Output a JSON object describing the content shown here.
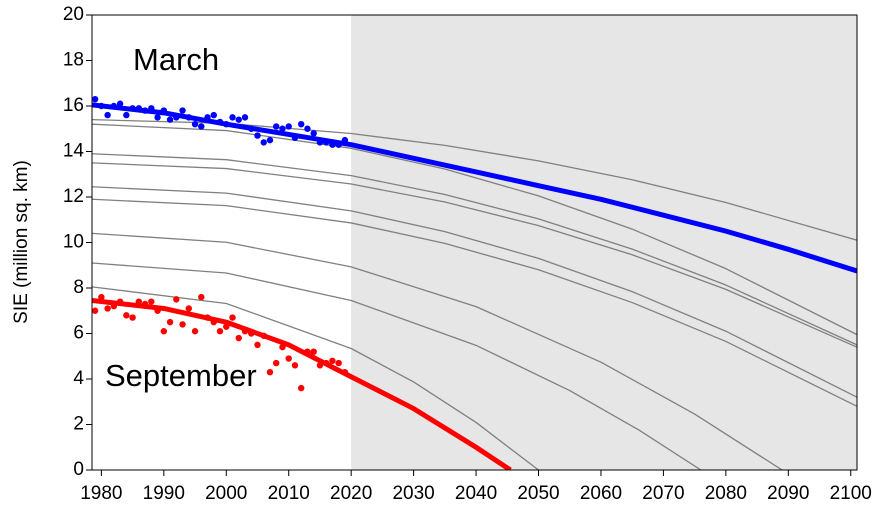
{
  "chart_data": {
    "type": "scatter",
    "y_label": "SIE (million sq. km)",
    "xlim": [
      1978.5,
      2101
    ],
    "ylim": [
      0,
      20
    ],
    "xticks": [
      1980,
      1990,
      2000,
      2010,
      2020,
      2030,
      2040,
      2050,
      2060,
      2070,
      2080,
      2090,
      2100
    ],
    "yticks": [
      0,
      2,
      4,
      6,
      8,
      10,
      12,
      14,
      16,
      18,
      20
    ],
    "shade": {
      "x": [
        2020,
        2101
      ],
      "color": "#e6e6e6"
    },
    "series": [
      {
        "type": "line",
        "color": "#808080",
        "width": 1.3,
        "x": [
          1978.5,
          2000,
          2020,
          2035,
          2050,
          2065,
          2080,
          2101
        ],
        "values": [
          15.4,
          15.24,
          14.79,
          14.27,
          13.59,
          12.76,
          11.76,
          10.1
        ]
      },
      {
        "type": "line",
        "color": "#808080",
        "width": 1.3,
        "x": [
          1978.5,
          2000,
          2020,
          2035,
          2050,
          2065,
          2080,
          2101
        ],
        "values": [
          15.2,
          14.92,
          14.14,
          13.23,
          12.05,
          10.59,
          8.85,
          5.95
        ]
      },
      {
        "type": "line",
        "color": "#808080",
        "width": 1.3,
        "x": [
          1978.5,
          2000,
          2020,
          2035,
          2050,
          2065,
          2080,
          2101
        ],
        "values": [
          13.9,
          13.64,
          12.94,
          12.11,
          11.04,
          9.71,
          8.13,
          5.5
        ]
      },
      {
        "type": "line",
        "color": "#808080",
        "width": 1.3,
        "x": [
          1978.5,
          2000,
          2020,
          2035,
          2050,
          2065,
          2080,
          2101
        ],
        "values": [
          13.5,
          13.25,
          12.57,
          11.78,
          10.74,
          9.46,
          7.94,
          5.4
        ]
      },
      {
        "type": "line",
        "color": "#808080",
        "width": 1.3,
        "x": [
          1978.5,
          2000,
          2020,
          2035,
          2050,
          2065,
          2080,
          2101
        ],
        "values": [
          12.45,
          12.17,
          11.39,
          10.48,
          9.3,
          7.84,
          6.1,
          3.2
        ]
      },
      {
        "type": "line",
        "color": "#808080",
        "width": 1.3,
        "x": [
          1978.5,
          2000,
          2020,
          2035,
          2050,
          2065,
          2080,
          2101
        ],
        "values": [
          11.9,
          11.62,
          10.86,
          9.96,
          8.8,
          7.36,
          5.65,
          2.8
        ]
      },
      {
        "type": "line",
        "color": "#808080",
        "width": 1.3,
        "x": [
          1978.5,
          2000,
          2020,
          2040,
          2060,
          2075,
          2089
        ],
        "values": [
          10.4,
          10.01,
          8.93,
          7.18,
          4.74,
          2.46,
          0
        ]
      },
      {
        "type": "line",
        "color": "#808080",
        "width": 1.3,
        "x": [
          1978.5,
          2000,
          2020,
          2040,
          2055,
          2066,
          2076
        ],
        "values": [
          9.1,
          8.66,
          7.45,
          5.48,
          3.49,
          1.77,
          0
        ]
      },
      {
        "type": "line",
        "color": "#808080",
        "width": 1.3,
        "x": [
          1978.5,
          2000,
          2020,
          2030,
          2040,
          2050
        ],
        "values": [
          8.05,
          7.32,
          5.34,
          3.87,
          2.09,
          0
        ]
      },
      {
        "type": "line",
        "color": "#0000ff",
        "width": 5,
        "x": [
          1978.5,
          1990,
          2000,
          2010,
          2020,
          2030,
          2040,
          2050,
          2060,
          2070,
          2080,
          2090,
          2101
        ],
        "values": [
          16.05,
          15.7,
          15.2,
          14.75,
          14.3,
          13.7,
          13.1,
          12.5,
          11.9,
          11.2,
          10.5,
          9.7,
          8.75
        ]
      },
      {
        "type": "line",
        "color": "#ff0000",
        "width": 5,
        "x": [
          1978.5,
          1990,
          2000,
          2010,
          2020,
          2030,
          2040,
          2045.5
        ],
        "values": [
          7.45,
          7.1,
          6.5,
          5.5,
          4.1,
          2.7,
          1.0,
          0
        ]
      },
      {
        "type": "scatter",
        "name": "March",
        "color": "#0000ff",
        "x": [
          1979,
          1980,
          1981,
          1982,
          1983,
          1984,
          1985,
          1986,
          1987,
          1988,
          1989,
          1990,
          1991,
          1992,
          1993,
          1994,
          1995,
          1996,
          1997,
          1998,
          1999,
          2000,
          2001,
          2002,
          2003,
          2004,
          2005,
          2006,
          2007,
          2008,
          2009,
          2010,
          2011,
          2012,
          2013,
          2014,
          2015,
          2016,
          2017,
          2018,
          2019
        ],
        "values": [
          16.3,
          16.0,
          15.6,
          16.0,
          16.1,
          15.6,
          15.9,
          15.9,
          15.8,
          15.9,
          15.5,
          15.8,
          15.4,
          15.5,
          15.8,
          15.5,
          15.2,
          15.1,
          15.5,
          15.6,
          15.3,
          15.2,
          15.5,
          15.4,
          15.5,
          15.0,
          14.7,
          14.4,
          14.5,
          15.1,
          15.0,
          15.1,
          14.6,
          15.2,
          15.0,
          14.8,
          14.4,
          14.4,
          14.3,
          14.3,
          14.5
        ]
      },
      {
        "type": "scatter",
        "name": "September",
        "color": "#ff0000",
        "x": [
          1979,
          1980,
          1981,
          1982,
          1983,
          1984,
          1985,
          1986,
          1987,
          1988,
          1989,
          1990,
          1991,
          1992,
          1993,
          1994,
          1995,
          1996,
          1997,
          1998,
          1999,
          2000,
          2001,
          2002,
          2003,
          2004,
          2005,
          2006,
          2007,
          2008,
          2009,
          2010,
          2011,
          2012,
          2013,
          2014,
          2015,
          2016,
          2017,
          2018,
          2019
        ],
        "values": [
          7.0,
          7.6,
          7.1,
          7.2,
          7.4,
          6.8,
          6.7,
          7.4,
          7.3,
          7.4,
          7.0,
          6.1,
          6.5,
          7.5,
          6.4,
          7.1,
          6.1,
          7.6,
          6.7,
          6.5,
          6.1,
          6.3,
          6.7,
          5.8,
          6.1,
          6.0,
          5.5,
          5.9,
          4.3,
          4.7,
          5.4,
          4.9,
          4.6,
          3.6,
          5.2,
          5.2,
          4.6,
          4.7,
          4.8,
          4.7,
          4.3
        ]
      }
    ]
  }
}
